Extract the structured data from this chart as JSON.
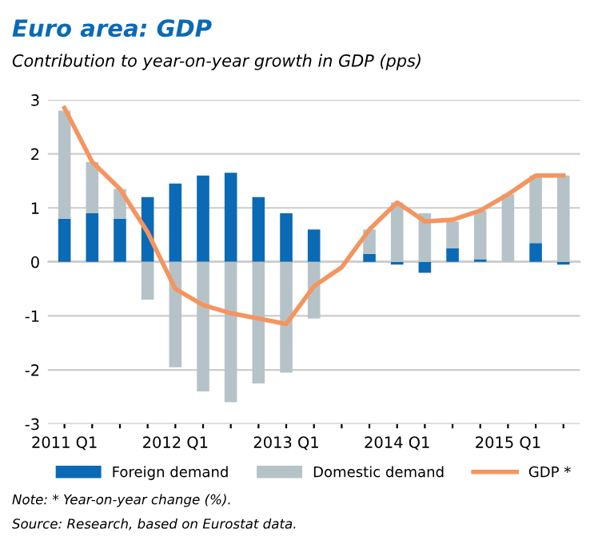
{
  "chart_data": {
    "type": "bar",
    "title": "Euro area: GDP",
    "subtitle": "Contribution to year-on-year growth in GDP (pps)",
    "categories": [
      "2011 Q1",
      null,
      null,
      null,
      "2012 Q1",
      null,
      null,
      null,
      "2013 Q1",
      null,
      null,
      null,
      "2014 Q1",
      null,
      null,
      null,
      "2015 Q1",
      null,
      null
    ],
    "stacked": true,
    "series": [
      {
        "name": "Foreign demand",
        "color": "#0a6ab6",
        "values": [
          0.8,
          0.9,
          0.8,
          1.2,
          1.45,
          1.6,
          1.65,
          1.2,
          0.9,
          0.6,
          0.0,
          0.15,
          -0.05,
          -0.2,
          0.25,
          0.05,
          0.0,
          0.35,
          -0.05
        ]
      },
      {
        "name": "Domestic demand",
        "color": "#b5c3c8",
        "values": [
          2.0,
          0.95,
          0.55,
          -0.7,
          -1.95,
          -2.4,
          -2.6,
          -2.25,
          -2.05,
          -1.05,
          null,
          0.45,
          1.1,
          0.9,
          0.5,
          0.9,
          1.25,
          1.25,
          1.6
        ]
      },
      {
        "name": "GDP *",
        "type": "line",
        "color": "#f4955f",
        "values": [
          2.85,
          1.85,
          1.35,
          0.55,
          -0.5,
          -0.8,
          -0.95,
          -1.05,
          -1.15,
          -0.45,
          -0.1,
          0.6,
          1.1,
          0.75,
          0.78,
          0.95,
          1.25,
          1.6,
          1.6
        ]
      }
    ],
    "ylim": [
      -3,
      3
    ],
    "yticks": [
      -3,
      -2,
      -1,
      0,
      1,
      2,
      3
    ],
    "grid": "y",
    "legend": "bottom",
    "annotations": [
      "Note: * Year-on-year change (%).",
      "Source: Research, based on Eurostat data."
    ]
  }
}
